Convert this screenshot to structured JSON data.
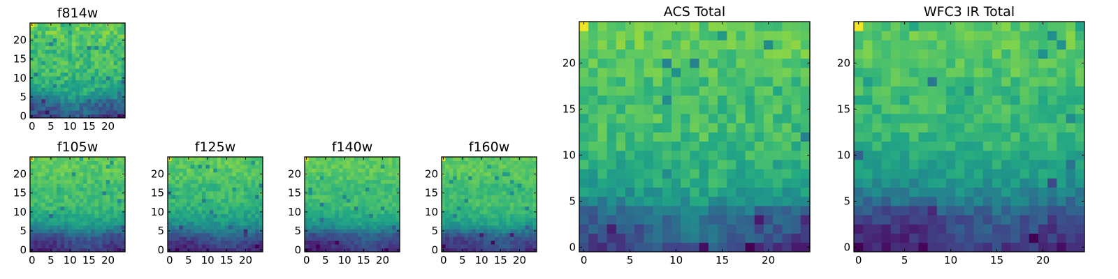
{
  "chart_data": [
    {
      "type": "heatmap",
      "title": "f814w",
      "grid_size": [
        25,
        25
      ],
      "xlim": [
        0,
        24
      ],
      "ylim": [
        0,
        24
      ],
      "x_ticks": [
        "0",
        "5",
        "10",
        "15",
        "20"
      ],
      "y_ticks": [
        "0",
        "5",
        "10",
        "15",
        "20"
      ],
      "colormap": "viridis",
      "value_range": [
        0,
        1
      ],
      "bottom_profile": [
        0.78,
        0.72,
        0.7,
        0.66,
        0.6,
        0.5,
        0.43,
        0.38,
        0.35,
        0.33,
        0.3,
        0.28,
        0.26,
        0.26,
        0.25,
        0.26,
        0.27,
        0.26,
        0.25,
        0.23,
        0.22,
        0.21,
        0.2,
        0.2,
        0.2
      ],
      "hot_spot": [
        11,
        1
      ],
      "noise": 0.1
    },
    {
      "type": "heatmap",
      "title": "f105w",
      "grid_size": [
        25,
        25
      ],
      "xlim": [
        0,
        24
      ],
      "ylim": [
        0,
        24
      ],
      "x_ticks": [
        "0",
        "5",
        "10",
        "15",
        "20"
      ],
      "y_ticks": [
        "0",
        "5",
        "10",
        "15",
        "20"
      ],
      "colormap": "viridis",
      "value_range": [
        0,
        1
      ],
      "bottom_profile": [
        0.86,
        0.82,
        0.8,
        0.76,
        0.7,
        0.6,
        0.5,
        0.43,
        0.38,
        0.35,
        0.32,
        0.29,
        0.27,
        0.26,
        0.25,
        0.26,
        0.27,
        0.26,
        0.24,
        0.22,
        0.21,
        0.2,
        0.2,
        0.2,
        0.2
      ],
      "hot_spot": [
        14,
        1
      ],
      "noise": 0.07
    },
    {
      "type": "heatmap",
      "title": "f125w",
      "grid_size": [
        25,
        25
      ],
      "xlim": [
        0,
        24
      ],
      "ylim": [
        0,
        24
      ],
      "x_ticks": [
        "0",
        "5",
        "10",
        "15",
        "20"
      ],
      "y_ticks": [
        "0",
        "5",
        "10",
        "15",
        "20"
      ],
      "colormap": "viridis",
      "value_range": [
        0,
        1
      ],
      "bottom_profile": [
        0.88,
        0.84,
        0.8,
        0.74,
        0.68,
        0.6,
        0.52,
        0.46,
        0.42,
        0.38,
        0.35,
        0.32,
        0.3,
        0.28,
        0.27,
        0.27,
        0.28,
        0.27,
        0.25,
        0.23,
        0.22,
        0.21,
        0.2,
        0.2,
        0.2
      ],
      "hot_spot": [
        15,
        1
      ],
      "noise": 0.07
    },
    {
      "type": "heatmap",
      "title": "f140w",
      "grid_size": [
        25,
        25
      ],
      "xlim": [
        0,
        24
      ],
      "ylim": [
        0,
        24
      ],
      "x_ticks": [
        "0",
        "5",
        "10",
        "15",
        "20"
      ],
      "y_ticks": [
        "0",
        "5",
        "10",
        "15",
        "20"
      ],
      "colormap": "viridis",
      "value_range": [
        0,
        1
      ],
      "bottom_profile": [
        0.86,
        0.82,
        0.8,
        0.76,
        0.7,
        0.6,
        0.5,
        0.43,
        0.38,
        0.35,
        0.32,
        0.29,
        0.27,
        0.26,
        0.25,
        0.26,
        0.27,
        0.26,
        0.24,
        0.22,
        0.21,
        0.2,
        0.2,
        0.2,
        0.2
      ],
      "hot_spot": [
        16,
        1
      ],
      "noise": 0.06
    },
    {
      "type": "heatmap",
      "title": "f160w",
      "grid_size": [
        25,
        25
      ],
      "xlim": [
        0,
        24
      ],
      "ylim": [
        0,
        24
      ],
      "x_ticks": [
        "0",
        "5",
        "10",
        "15",
        "20"
      ],
      "y_ticks": [
        "0",
        "5",
        "10",
        "15",
        "20"
      ],
      "colormap": "viridis",
      "value_range": [
        0,
        1
      ],
      "bottom_profile": [
        0.84,
        0.8,
        0.78,
        0.74,
        0.68,
        0.58,
        0.48,
        0.41,
        0.36,
        0.33,
        0.3,
        0.28,
        0.26,
        0.25,
        0.25,
        0.26,
        0.27,
        0.26,
        0.24,
        0.22,
        0.21,
        0.2,
        0.2,
        0.2,
        0.2
      ],
      "hot_spot": [
        15,
        1
      ],
      "noise": 0.06
    },
    {
      "type": "heatmap",
      "title": "ACS Total",
      "grid_size": [
        25,
        25
      ],
      "xlim": [
        0,
        24
      ],
      "ylim": [
        0,
        24
      ],
      "x_ticks": [
        "0",
        "5",
        "10",
        "15",
        "20"
      ],
      "y_ticks": [
        "0",
        "5",
        "10",
        "15",
        "20"
      ],
      "colormap": "viridis",
      "value_range": [
        0,
        1
      ],
      "bottom_profile": [
        0.8,
        0.74,
        0.7,
        0.66,
        0.6,
        0.5,
        0.43,
        0.38,
        0.35,
        0.33,
        0.3,
        0.28,
        0.26,
        0.26,
        0.25,
        0.26,
        0.27,
        0.26,
        0.25,
        0.23,
        0.22,
        0.21,
        0.2,
        0.2,
        0.2
      ],
      "hot_spot": [
        12,
        1
      ],
      "noise": 0.09
    },
    {
      "type": "heatmap",
      "title": "WFC3 IR Total",
      "grid_size": [
        25,
        25
      ],
      "xlim": [
        0,
        24
      ],
      "ylim": [
        0,
        24
      ],
      "x_ticks": [
        "0",
        "5",
        "10",
        "15",
        "20"
      ],
      "y_ticks": [
        "0",
        "5",
        "10",
        "15",
        "20"
      ],
      "colormap": "viridis",
      "value_range": [
        0,
        1
      ],
      "bottom_profile": [
        0.88,
        0.84,
        0.8,
        0.76,
        0.7,
        0.6,
        0.52,
        0.46,
        0.42,
        0.38,
        0.35,
        0.32,
        0.3,
        0.28,
        0.27,
        0.27,
        0.28,
        0.27,
        0.25,
        0.23,
        0.22,
        0.21,
        0.2,
        0.2,
        0.2
      ],
      "hot_spot": [
        15,
        1
      ],
      "noise": 0.08
    }
  ]
}
